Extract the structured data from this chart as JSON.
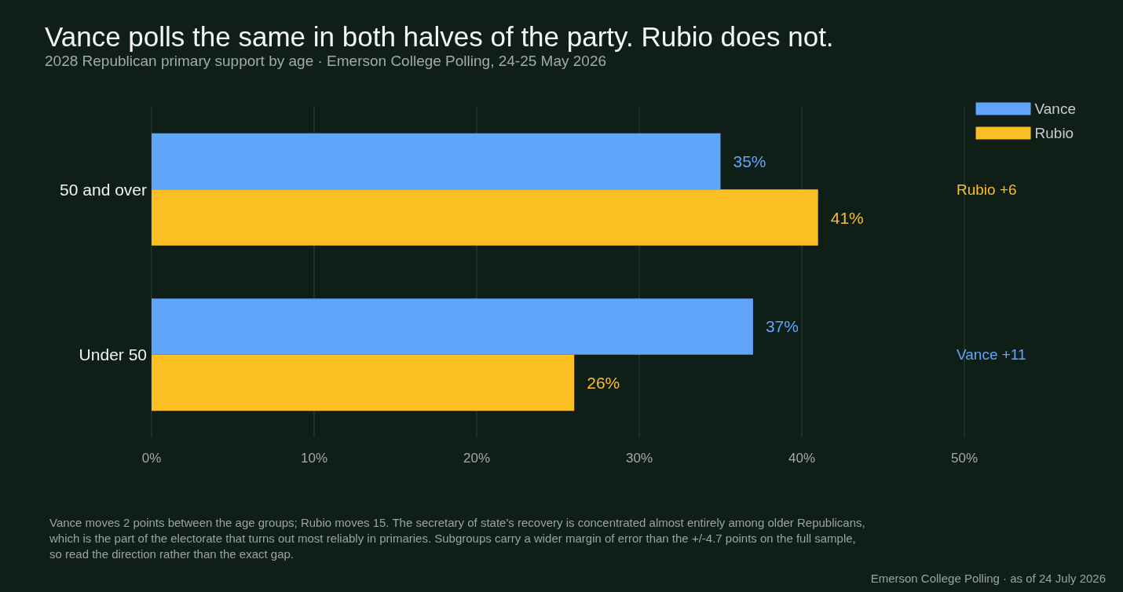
{
  "chart_data": {
    "type": "bar",
    "orientation": "horizontal",
    "title": "Vance polls the same in both halves of the party. Rubio does not.",
    "subtitle": "2028 Republican primary support by age · Emerson College Polling, 24-25 May 2026",
    "categories": [
      "50 and over",
      "Under 50"
    ],
    "series": [
      {
        "name": "Vance",
        "color": "#60a5fa",
        "values": [
          35,
          37
        ],
        "value_labels": [
          "35%",
          "37%"
        ]
      },
      {
        "name": "Rubio",
        "color": "#fbbf24",
        "values": [
          41,
          26
        ],
        "value_labels": [
          "41%",
          "26%"
        ]
      }
    ],
    "xlim": [
      0,
      50
    ],
    "xticks": [
      {
        "value": 0,
        "label": "0%"
      },
      {
        "value": 10,
        "label": "10%"
      },
      {
        "value": 20,
        "label": "20%"
      },
      {
        "value": 30,
        "label": "30%"
      },
      {
        "value": 40,
        "label": "40%"
      },
      {
        "value": 50,
        "label": "50%"
      }
    ],
    "grid": "x",
    "legend": "top right",
    "annotations": [
      "Rubio +6",
      "Vance +11",
      "Vance moves 2 points between the age groups; Rubio moves 15. The secretary of state's recovery is concentrated almost entirely among older Republicans, which is the part of the electorate that turns out most reliably in primaries. Subgroups carry a wider margin of error than the +/-4.7 points on the full sample, so read the direction rather than the exact gap.",
      "Emerson College Polling · as of 24 July 2026"
    ]
  }
}
